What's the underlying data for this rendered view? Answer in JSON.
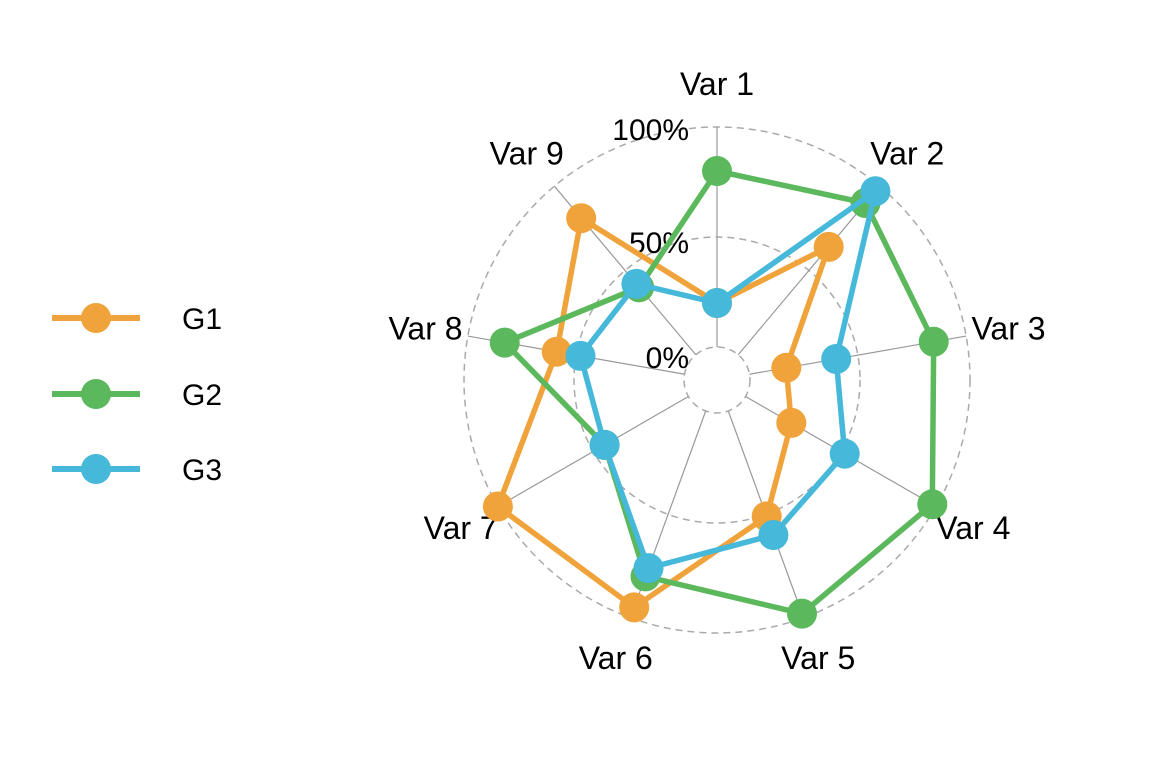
{
  "chart_data": {
    "type": "radar",
    "title": "",
    "axes": [
      "Var 1",
      "Var 2",
      "Var 3",
      "Var 4",
      "Var 5",
      "Var 6",
      "Var 7",
      "Var 8",
      "Var 9"
    ],
    "grid_labels": [
      "0%",
      "50%",
      "100%"
    ],
    "grid_values": [
      0,
      50,
      100
    ],
    "ylim": [
      -15,
      100
    ],
    "legend_position": "left",
    "series": [
      {
        "name": "G1",
        "color": "#F0A33A",
        "values": [
          20,
          64,
          17,
          24,
          51,
          95,
          100,
          59,
          81
        ]
      },
      {
        "name": "G2",
        "color": "#5CB85C",
        "values": [
          80,
          90,
          85,
          98,
          98,
          80,
          44,
          83,
          40
        ]
      },
      {
        "name": "G3",
        "color": "#46B8DA",
        "values": [
          20,
          97,
          40,
          52,
          60,
          76,
          44,
          48,
          42
        ]
      }
    ]
  }
}
